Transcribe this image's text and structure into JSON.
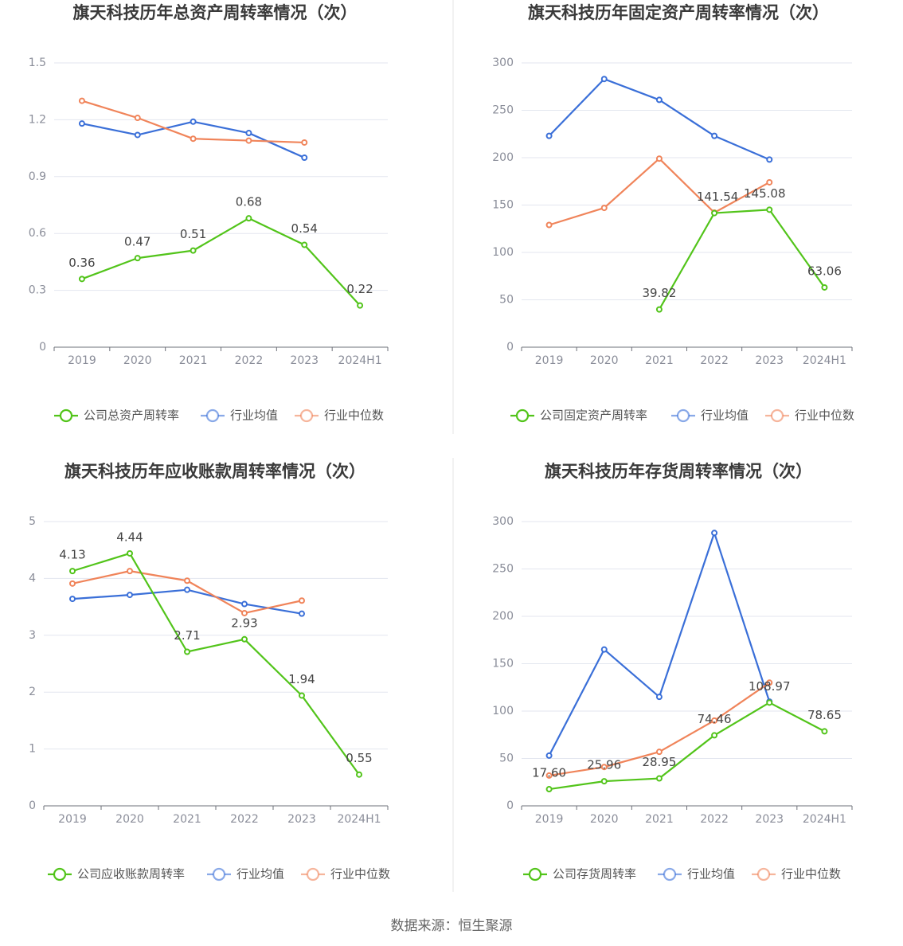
{
  "source_note": "数据来源：恒生聚源",
  "colors": {
    "company": "#52c41a",
    "avg": "#3a6fd8",
    "median": "#f0845a",
    "grid": "#e3e6ef",
    "axis": "#6e7079",
    "tick": "#8a8d99",
    "title": "#3a3a3a",
    "label": "#444444"
  },
  "chart_data": [
    {
      "type": "line",
      "title": "旗天科技历年总资产周转率情况（次）",
      "categories": [
        "2019",
        "2020",
        "2021",
        "2022",
        "2023",
        "2024H1"
      ],
      "ylim": [
        0,
        1.5
      ],
      "yticks": [
        "0",
        "0.3",
        "0.6",
        "0.9",
        "1.2",
        "1.5"
      ],
      "grid": true,
      "legend": "bottom",
      "series": [
        {
          "name": "公司总资产周转率",
          "role": "company",
          "values": [
            0.36,
            0.47,
            0.51,
            0.68,
            0.54,
            0.22
          ],
          "labels": [
            "0.36",
            "0.47",
            "0.51",
            "0.68",
            "0.54",
            "0.22"
          ]
        },
        {
          "name": "行业均值",
          "role": "avg",
          "values": [
            1.18,
            1.12,
            1.19,
            1.13,
            1.0,
            null
          ]
        },
        {
          "name": "行业中位数",
          "role": "median",
          "values": [
            1.3,
            1.21,
            1.1,
            1.09,
            1.08,
            null
          ]
        }
      ]
    },
    {
      "type": "line",
      "title": "旗天科技历年固定资产周转率情况（次）",
      "categories": [
        "2019",
        "2020",
        "2021",
        "2022",
        "2023",
        "2024H1"
      ],
      "ylim": [
        0,
        300
      ],
      "yticks": [
        "0",
        "50",
        "100",
        "150",
        "200",
        "250",
        "300"
      ],
      "grid": true,
      "legend": "bottom",
      "series": [
        {
          "name": "公司固定资产周转率",
          "role": "company",
          "values": [
            null,
            null,
            39.82,
            141.54,
            145.08,
            63.06
          ],
          "labels": [
            null,
            null,
            "39.82",
            "141.54",
            "145.08",
            "63.06"
          ]
        },
        {
          "name": "行业均值",
          "role": "avg",
          "values": [
            223,
            283,
            261,
            223,
            198,
            null
          ]
        },
        {
          "name": "行业中位数",
          "role": "median",
          "values": [
            129,
            147,
            199,
            142,
            174,
            null
          ]
        }
      ]
    },
    {
      "type": "line",
      "title": "旗天科技历年应收账款周转率情况（次）",
      "categories": [
        "2019",
        "2020",
        "2021",
        "2022",
        "2023",
        "2024H1"
      ],
      "ylim": [
        0,
        5
      ],
      "yticks": [
        "0",
        "1",
        "2",
        "3",
        "4",
        "5"
      ],
      "grid": true,
      "legend": "bottom",
      "series": [
        {
          "name": "公司应收账款周转率",
          "role": "company",
          "values": [
            4.13,
            4.44,
            2.71,
            2.93,
            1.94,
            0.55
          ],
          "labels": [
            "4.13",
            "4.44",
            "2.71",
            "2.93",
            "1.94",
            "0.55"
          ]
        },
        {
          "name": "行业均值",
          "role": "avg",
          "values": [
            3.64,
            3.71,
            3.8,
            3.55,
            3.38,
            null
          ]
        },
        {
          "name": "行业中位数",
          "role": "median",
          "values": [
            3.91,
            4.13,
            3.96,
            3.39,
            3.61,
            null
          ]
        }
      ]
    },
    {
      "type": "line",
      "title": "旗天科技历年存货周转率情况（次）",
      "categories": [
        "2019",
        "2020",
        "2021",
        "2022",
        "2023",
        "2024H1"
      ],
      "ylim": [
        0,
        300
      ],
      "yticks": [
        "0",
        "50",
        "100",
        "150",
        "200",
        "250",
        "300"
      ],
      "grid": true,
      "legend": "bottom",
      "series": [
        {
          "name": "公司存货周转率",
          "role": "company",
          "values": [
            17.6,
            25.96,
            28.95,
            74.46,
            108.97,
            78.65
          ],
          "labels": [
            "17.60",
            "25.96",
            "28.95",
            "74.46",
            "108.97",
            "78.65"
          ]
        },
        {
          "name": "行业均值",
          "role": "avg",
          "values": [
            53,
            165,
            115,
            288,
            110,
            null
          ]
        },
        {
          "name": "行业中位数",
          "role": "median",
          "values": [
            32,
            41,
            57,
            90,
            130,
            null
          ]
        }
      ]
    }
  ]
}
